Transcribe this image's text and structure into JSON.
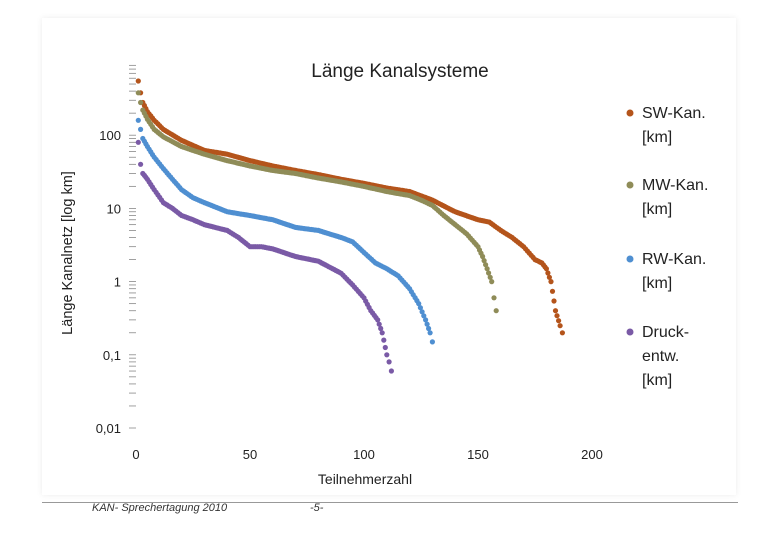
{
  "chart_data": {
    "type": "scatter",
    "title": "Länge Kanalsysteme",
    "xlabel": "Teilnehmerzahl",
    "ylabel": "Länge Kanalnetz [log km]",
    "y_scale": "log",
    "xlim": [
      0,
      200
    ],
    "ylim": [
      0.01,
      1000
    ],
    "x_ticks": [
      "0",
      "50",
      "100",
      "150",
      "200"
    ],
    "y_ticks": [
      "0,01",
      "0,1",
      "1",
      "10",
      "100"
    ],
    "legend_position": "right",
    "series": [
      {
        "name": "SW-Kan. [km]",
        "label_lines": [
          "SW-Kan.",
          "[km]"
        ],
        "color": "#b4541b",
        "x": [
          1,
          2,
          3,
          5,
          8,
          12,
          20,
          30,
          40,
          50,
          60,
          70,
          80,
          90,
          100,
          110,
          120,
          130,
          140,
          150,
          155,
          160,
          165,
          170,
          175,
          178,
          180,
          182,
          184,
          186,
          187
        ],
        "values": [
          550,
          380,
          280,
          210,
          160,
          120,
          85,
          62,
          55,
          45,
          38,
          33,
          29,
          25,
          22,
          19,
          17,
          13,
          9,
          7,
          6.5,
          5,
          4,
          3,
          2,
          1.8,
          1.5,
          1,
          0.4,
          0.25,
          0.2
        ]
      },
      {
        "name": "MW-Kan. [km]",
        "label_lines": [
          "MW-Kan.",
          "[km]"
        ],
        "color": "#8f8c58",
        "x": [
          1,
          2,
          3,
          5,
          8,
          12,
          20,
          30,
          40,
          50,
          60,
          70,
          80,
          90,
          100,
          110,
          120,
          125,
          130,
          135,
          140,
          145,
          150,
          152,
          154,
          156,
          157,
          158
        ],
        "values": [
          380,
          280,
          220,
          165,
          120,
          95,
          70,
          55,
          45,
          38,
          33,
          30,
          26,
          23,
          20,
          17,
          15,
          13,
          11,
          8,
          6,
          4.5,
          3,
          2.2,
          1.5,
          1,
          0.6,
          0.4
        ]
      },
      {
        "name": "RW-Kan. [km]",
        "label_lines": [
          "RW-Kan.",
          "[km]"
        ],
        "color": "#4f8fd1",
        "x": [
          1,
          2,
          3,
          5,
          8,
          12,
          16,
          20,
          25,
          30,
          40,
          50,
          60,
          70,
          80,
          90,
          95,
          100,
          105,
          110,
          115,
          120,
          124,
          127,
          129,
          130
        ],
        "values": [
          160,
          120,
          90,
          70,
          50,
          35,
          25,
          18,
          14,
          12,
          9,
          8,
          7,
          5.5,
          5,
          4,
          3.5,
          2.5,
          1.8,
          1.5,
          1.2,
          0.8,
          0.5,
          0.3,
          0.2,
          0.15
        ]
      },
      {
        "name": "Druck-entw. [km]",
        "label_lines": [
          "Druck-",
          "entw.",
          "[km]"
        ],
        "color": "#7a5aa6",
        "x": [
          1,
          2,
          3,
          5,
          8,
          12,
          16,
          20,
          25,
          30,
          40,
          45,
          50,
          55,
          60,
          70,
          80,
          90,
          95,
          100,
          103,
          106,
          108,
          110,
          111,
          112
        ],
        "values": [
          80,
          40,
          30,
          25,
          18,
          12,
          10,
          8,
          7,
          6,
          5,
          4,
          3,
          3,
          2.8,
          2.2,
          1.9,
          1.3,
          0.9,
          0.6,
          0.4,
          0.3,
          0.2,
          0.1,
          0.08,
          0.06
        ]
      }
    ]
  },
  "footer": {
    "event": "KAN- Sprechertagung 2010",
    "page": "-5-"
  }
}
